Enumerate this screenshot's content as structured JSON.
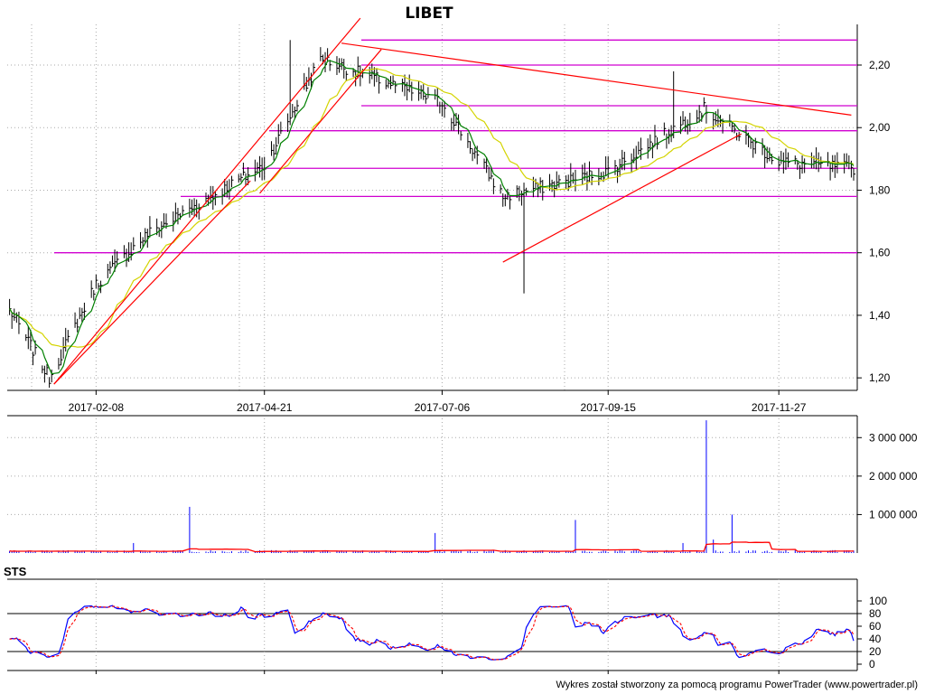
{
  "chart_data": [
    {
      "type": "candlestick",
      "title": "LIBET",
      "ylim": [
        1.16,
        2.33
      ],
      "y_ticks": [
        "1,20",
        "1,40",
        "1,60",
        "1,80",
        "2,00",
        "2,20"
      ],
      "x_ticks": [
        "2017-02-08",
        "2017-04-21",
        "2017-07-06",
        "2017-09-15",
        "2017-11-27"
      ],
      "grid": true,
      "price_anchors_x": [
        "2017-01-01",
        "2017-01-19",
        "2017-02-08",
        "2017-03-02",
        "2017-04-21",
        "2017-05-15",
        "2017-07-06",
        "2017-08-01",
        "2017-09-15",
        "2017-10-26",
        "2017-11-27",
        "2017-12-29"
      ],
      "price_anchors_y": [
        1.43,
        1.2,
        1.5,
        1.66,
        1.88,
        2.22,
        2.08,
        1.78,
        1.86,
        2.06,
        1.89,
        1.87
      ],
      "spikes": [
        {
          "date": "2017-08-10",
          "low": 1.47
        },
        {
          "date": "2017-05-02",
          "high": 2.28
        },
        {
          "date": "2017-10-13",
          "high": 2.18
        }
      ],
      "horizontal_levels": [
        1.6,
        1.78,
        1.87,
        1.99,
        2.07,
        2.2,
        2.28
      ],
      "trend_lines": [
        {
          "from": [
            "2017-01-21",
            1.18
          ],
          "to": [
            "2017-04-15",
            1.83
          ]
        },
        {
          "from": [
            "2017-01-21",
            1.18
          ],
          "to": [
            "2017-06-01",
            2.35
          ]
        },
        {
          "from": [
            "2017-04-19",
            1.79
          ],
          "to": [
            "2017-06-10",
            2.25
          ]
        },
        {
          "from": [
            "2017-05-24",
            2.27
          ],
          "to": [
            "2017-12-28",
            2.04
          ]
        },
        {
          "from": [
            "2017-08-01",
            1.57
          ],
          "to": [
            "2017-11-11",
            1.98
          ]
        }
      ],
      "series": [
        {
          "color": "#008000"
        },
        {
          "color": "#d4d400"
        }
      ]
    },
    {
      "type": "bar",
      "ylim": [
        0,
        3500000
      ],
      "y_ticks": [
        "1 000 000",
        "2 000 000",
        "3 000 000"
      ],
      "grid": true,
      "volume_spikes": [
        {
          "date": "2017-03-20",
          "value": 1200000
        },
        {
          "date": "2017-10-27",
          "value": 3450000
        },
        {
          "date": "2017-11-07",
          "value": 1000000
        },
        {
          "date": "2017-09-02",
          "value": 860000
        },
        {
          "date": "2017-07-03",
          "value": 520000
        },
        {
          "date": "2017-02-24",
          "value": 260000
        },
        {
          "date": "2017-10-17",
          "value": 260000
        },
        {
          "date": "2017-10-29",
          "value": 350000
        }
      ],
      "average_color": "#ff0000"
    },
    {
      "type": "line",
      "subtitle": "STS",
      "ylim": [
        0,
        100
      ],
      "y_ticks": [
        "0",
        "20",
        "40",
        "60",
        "80",
        "100"
      ],
      "reference_lines": [
        20,
        80
      ],
      "series": [
        {
          "color": "#0000ff"
        },
        {
          "color": "#ff0000"
        }
      ]
    }
  ],
  "footer": "Wykres został stworzony za pomocą programu PowerTrader (www.powertrader.pl)"
}
